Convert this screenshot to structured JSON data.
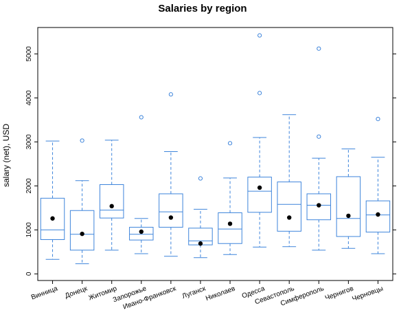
{
  "chart_data": {
    "type": "box",
    "title": "Salaries by region",
    "xlabel": "",
    "ylabel": "salary (net), USD",
    "ylim": [
      -150,
      5600
    ],
    "yticks": [
      0,
      1000,
      2000,
      3000,
      4000,
      5000
    ],
    "grid": false,
    "legend": "none",
    "box_color": "#3d84db",
    "mean_color": "#000000",
    "categories": [
      "Винница",
      "Донецк",
      "Житомир",
      "Запорожье",
      "Ивано-Франковск",
      "Луганск",
      "Николаев",
      "Одесса",
      "Севастополь",
      "Симферополь",
      "Чернигов",
      "Черновцы"
    ],
    "boxes": [
      {
        "whisker_low": 330,
        "q1": 780,
        "median": 1000,
        "q3": 1720,
        "whisker_high": 3020,
        "mean": 1260,
        "outliers": []
      },
      {
        "whisker_low": 230,
        "q1": 540,
        "median": 900,
        "q3": 1440,
        "whisker_high": 2120,
        "mean": 910,
        "outliers": [
          3030
        ]
      },
      {
        "whisker_low": 540,
        "q1": 1270,
        "median": 1450,
        "q3": 2030,
        "whisker_high": 3040,
        "mean": 1540,
        "outliers": []
      },
      {
        "whisker_low": 460,
        "q1": 770,
        "median": 900,
        "q3": 1060,
        "whisker_high": 1260,
        "mean": 960,
        "outliers": [
          3560
        ]
      },
      {
        "whisker_low": 400,
        "q1": 1060,
        "median": 1410,
        "q3": 1820,
        "whisker_high": 2780,
        "mean": 1280,
        "outliers": [
          4080
        ]
      },
      {
        "whisker_low": 370,
        "q1": 660,
        "median": 750,
        "q3": 1040,
        "whisker_high": 1470,
        "mean": 690,
        "outliers": [
          2170
        ]
      },
      {
        "whisker_low": 440,
        "q1": 690,
        "median": 1020,
        "q3": 1390,
        "whisker_high": 2180,
        "mean": 1140,
        "outliers": [
          2970
        ]
      },
      {
        "whisker_low": 610,
        "q1": 1400,
        "median": 1880,
        "q3": 2200,
        "whisker_high": 3100,
        "mean": 1960,
        "outliers": [
          4110,
          5420
        ]
      },
      {
        "whisker_low": 620,
        "q1": 970,
        "median": 1580,
        "q3": 2090,
        "whisker_high": 3620,
        "mean": 1280,
        "outliers": []
      },
      {
        "whisker_low": 540,
        "q1": 1230,
        "median": 1560,
        "q3": 1820,
        "whisker_high": 2630,
        "mean": 1560,
        "outliers": [
          3120,
          5120
        ]
      },
      {
        "whisker_low": 580,
        "q1": 850,
        "median": 1260,
        "q3": 2210,
        "whisker_high": 2840,
        "mean": 1320,
        "outliers": []
      },
      {
        "whisker_low": 460,
        "q1": 950,
        "median": 1340,
        "q3": 1660,
        "whisker_high": 2650,
        "mean": 1350,
        "outliers": [
          3520
        ]
      }
    ]
  }
}
